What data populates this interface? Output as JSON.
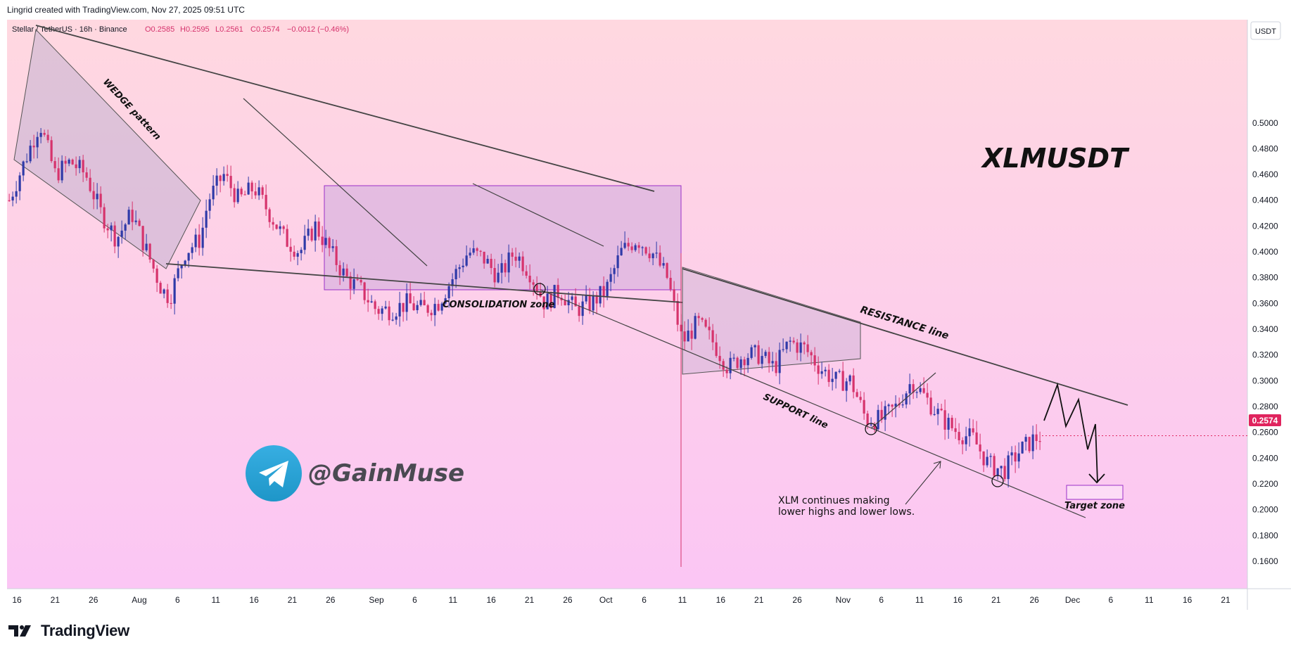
{
  "header": {
    "credit": "Lingrid created with TradingView.com, Nov 27, 2025 09:51 UTC"
  },
  "legend": {
    "symbol": "Stellar / TetherUS · 16h · Binance",
    "open": "O0.2585",
    "high": "H0.2595",
    "low": "L0.2561",
    "close": "C0.2574",
    "change": "−0.0012 (−0.46%)"
  },
  "axis": {
    "currency": "USDT",
    "last_price": "0.2574"
  },
  "annotations": {
    "wedge": "WEDGE pattern",
    "consolidation": "CONSOLIDATION zone",
    "resistance": "RESISTANCE line",
    "support": "SUPPORT line",
    "comment_line1": "XLM continues making",
    "comment_line2": "lower highs and lower lows.",
    "target": "Target zone"
  },
  "watermark": {
    "ticker": "XLMUSDT",
    "handle": "@GainMuse"
  },
  "footer": {
    "brand": "TradingView"
  },
  "colors": {
    "up": "#2f3aa8",
    "down": "#d6336c",
    "last_price_badge": "#e0245e",
    "zone_fill": "#c8b6e2",
    "zone_border": "#9b30c8"
  },
  "chart_data": {
    "type": "candlestick",
    "title": "XLMUSDT",
    "symbol": "Stellar / TetherUS",
    "interval": "16h",
    "exchange": "Binance",
    "ylim": [
      0.15,
      0.52
    ],
    "y_ticks": [
      0.16,
      0.18,
      0.2,
      0.22,
      0.24,
      0.26,
      0.28,
      0.3,
      0.32,
      0.34,
      0.36,
      0.38,
      0.4,
      0.42,
      0.44,
      0.46,
      0.48,
      0.5
    ],
    "x_ticks": [
      "16",
      "21",
      "26",
      "Aug",
      "6",
      "11",
      "16",
      "21",
      "26",
      "Sep",
      "6",
      "11",
      "16",
      "21",
      "26",
      "Oct",
      "6",
      "11",
      "16",
      "21",
      "26",
      "Nov",
      "6",
      "11",
      "16",
      "21",
      "26",
      "Dec",
      "6",
      "11",
      "16",
      "21"
    ],
    "x_tick_dates": [
      "2025-07-16",
      "2025-07-21",
      "2025-07-26",
      "2025-08-01",
      "2025-08-06",
      "2025-08-11",
      "2025-08-16",
      "2025-08-21",
      "2025-08-26",
      "2025-09-01",
      "2025-09-06",
      "2025-09-11",
      "2025-09-16",
      "2025-09-21",
      "2025-09-26",
      "2025-10-01",
      "2025-10-06",
      "2025-10-11",
      "2025-10-16",
      "2025-10-21",
      "2025-10-26",
      "2025-11-01",
      "2025-11-06",
      "2025-11-11",
      "2025-11-16",
      "2025-11-21",
      "2025-11-26",
      "2025-12-01",
      "2025-12-06",
      "2025-12-11",
      "2025-12-16",
      "2025-12-21"
    ],
    "close_series": [
      [
        "2025-07-15",
        0.44
      ],
      [
        "2025-07-17",
        0.47
      ],
      [
        "2025-07-19",
        0.5
      ],
      [
        "2025-07-21",
        0.46
      ],
      [
        "2025-07-23",
        0.47
      ],
      [
        "2025-07-25",
        0.46
      ],
      [
        "2025-07-27",
        0.43
      ],
      [
        "2025-07-29",
        0.41
      ],
      [
        "2025-07-31",
        0.43
      ],
      [
        "2025-08-02",
        0.4
      ],
      [
        "2025-08-04",
        0.37
      ],
      [
        "2025-08-05",
        0.365
      ],
      [
        "2025-08-07",
        0.4
      ],
      [
        "2025-08-09",
        0.41
      ],
      [
        "2025-08-10",
        0.44
      ],
      [
        "2025-08-12",
        0.46
      ],
      [
        "2025-08-14",
        0.44
      ],
      [
        "2025-08-16",
        0.45
      ],
      [
        "2025-08-18",
        0.43
      ],
      [
        "2025-08-20",
        0.41
      ],
      [
        "2025-08-22",
        0.4
      ],
      [
        "2025-08-24",
        0.42
      ],
      [
        "2025-08-26",
        0.4
      ],
      [
        "2025-08-28",
        0.38
      ],
      [
        "2025-08-30",
        0.37
      ],
      [
        "2025-09-01",
        0.355
      ],
      [
        "2025-09-03",
        0.355
      ],
      [
        "2025-09-05",
        0.36
      ],
      [
        "2025-09-07",
        0.355
      ],
      [
        "2025-09-09",
        0.36
      ],
      [
        "2025-09-11",
        0.38
      ],
      [
        "2025-09-13",
        0.4
      ],
      [
        "2025-09-15",
        0.395
      ],
      [
        "2025-09-17",
        0.38
      ],
      [
        "2025-09-19",
        0.4
      ],
      [
        "2025-09-21",
        0.385
      ],
      [
        "2025-09-23",
        0.36
      ],
      [
        "2025-09-25",
        0.37
      ],
      [
        "2025-09-27",
        0.355
      ],
      [
        "2025-09-29",
        0.36
      ],
      [
        "2025-10-01",
        0.37
      ],
      [
        "2025-10-03",
        0.4
      ],
      [
        "2025-10-05",
        0.41
      ],
      [
        "2025-10-07",
        0.4
      ],
      [
        "2025-10-09",
        0.38
      ],
      [
        "2025-10-11",
        0.33
      ],
      [
        "2025-10-13",
        0.345
      ],
      [
        "2025-10-15",
        0.33
      ],
      [
        "2025-10-17",
        0.31
      ],
      [
        "2025-10-19",
        0.32
      ],
      [
        "2025-10-21",
        0.32
      ],
      [
        "2025-10-23",
        0.31
      ],
      [
        "2025-10-25",
        0.33
      ],
      [
        "2025-10-27",
        0.325
      ],
      [
        "2025-10-29",
        0.31
      ],
      [
        "2025-10-31",
        0.3
      ],
      [
        "2025-11-02",
        0.3
      ],
      [
        "2025-11-04",
        0.27
      ],
      [
        "2025-11-06",
        0.27
      ],
      [
        "2025-11-08",
        0.28
      ],
      [
        "2025-11-10",
        0.3
      ],
      [
        "2025-11-12",
        0.285
      ],
      [
        "2025-11-14",
        0.27
      ],
      [
        "2025-11-16",
        0.26
      ],
      [
        "2025-11-18",
        0.255
      ],
      [
        "2025-11-20",
        0.235
      ],
      [
        "2025-11-22",
        0.23
      ],
      [
        "2025-11-24",
        0.245
      ],
      [
        "2025-11-26",
        0.255
      ],
      [
        "2025-11-27",
        0.2574
      ]
    ],
    "last_price": 0.2574,
    "trendlines": [
      {
        "name": "RESISTANCE line",
        "from": [
          "2025-10-11",
          0.358
        ],
        "to": [
          "2025-12-08",
          0.27
        ]
      },
      {
        "name": "SUPPORT line",
        "from": [
          "2025-09-22",
          0.343
        ],
        "to": [
          "2025-12-07",
          0.192
        ]
      }
    ],
    "zones": [
      {
        "name": "CONSOLIDATION zone",
        "x": [
          "2025-08-27",
          "2025-10-11"
        ],
        "y": [
          0.344,
          0.413
        ]
      },
      {
        "name": "Target zone",
        "x": [
          "2025-12-01",
          "2025-12-07"
        ],
        "y": [
          0.205,
          0.215
        ]
      }
    ]
  }
}
